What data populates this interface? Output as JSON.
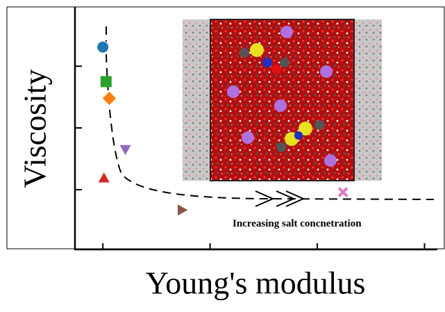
{
  "chart_data": {
    "type": "scatter",
    "xlabel": "Young's modulus",
    "ylabel": "Viscosity",
    "annotation": "Increasing salt concnetration",
    "xlim": [
      0.74,
      4.12
    ],
    "ylim": [
      0.02,
      3.96
    ],
    "xticks": [
      1,
      2,
      3,
      4
    ],
    "yticks": [
      1,
      2,
      3
    ],
    "points": [
      {
        "x": 1.0,
        "y": 3.31,
        "color": "#1f77b4",
        "marker": "circle"
      },
      {
        "x": 1.03,
        "y": 2.75,
        "color": "#2ca02c",
        "marker": "square"
      },
      {
        "x": 1.06,
        "y": 2.48,
        "color": "#ff7f0e",
        "marker": "diamond"
      },
      {
        "x": 1.21,
        "y": 1.65,
        "color": "#9467bd",
        "marker": "triangle-down"
      },
      {
        "x": 1.01,
        "y": 1.19,
        "color": "#d62728",
        "marker": "triangle-up"
      },
      {
        "x": 1.74,
        "y": 0.67,
        "color": "#8c564b",
        "marker": "triangle-right"
      },
      {
        "x": 3.24,
        "y": 0.96,
        "color": "#e377c2",
        "marker": "x"
      }
    ]
  }
}
